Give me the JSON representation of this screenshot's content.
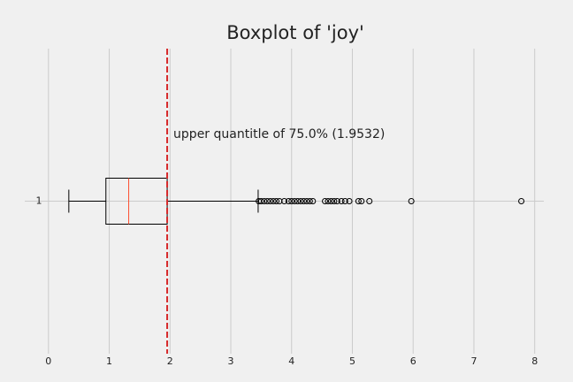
{
  "chart_data": {
    "type": "boxplot",
    "title": "Boxplot of 'joy'",
    "orientation": "horizontal",
    "categories": [
      "1"
    ],
    "boxes": [
      {
        "whislo": 0.335,
        "q1": 0.945,
        "med": 1.32,
        "q3": 1.9532,
        "whishi": 3.45,
        "fliers": [
          3.46,
          3.5,
          3.55,
          3.6,
          3.65,
          3.7,
          3.75,
          3.8,
          3.88,
          3.95,
          4.0,
          4.05,
          4.1,
          4.15,
          4.2,
          4.25,
          4.3,
          4.35,
          4.55,
          4.6,
          4.65,
          4.7,
          4.75,
          4.82,
          4.88,
          4.95,
          5.1,
          5.15,
          5.28,
          5.97,
          7.78
        ]
      }
    ],
    "box_color": "#000000",
    "median_color": "#fc4f30",
    "vline": {
      "value": 1.9532,
      "color": "#d62728",
      "label": "upper quantitle of 75.0% (1.9532)"
    },
    "xlim": [
      -0.39,
      8.15
    ],
    "xticks": [
      0,
      1,
      2,
      3,
      4,
      5,
      6,
      7,
      8
    ],
    "ylim": [
      0.5,
      1.5
    ],
    "grid": true
  }
}
